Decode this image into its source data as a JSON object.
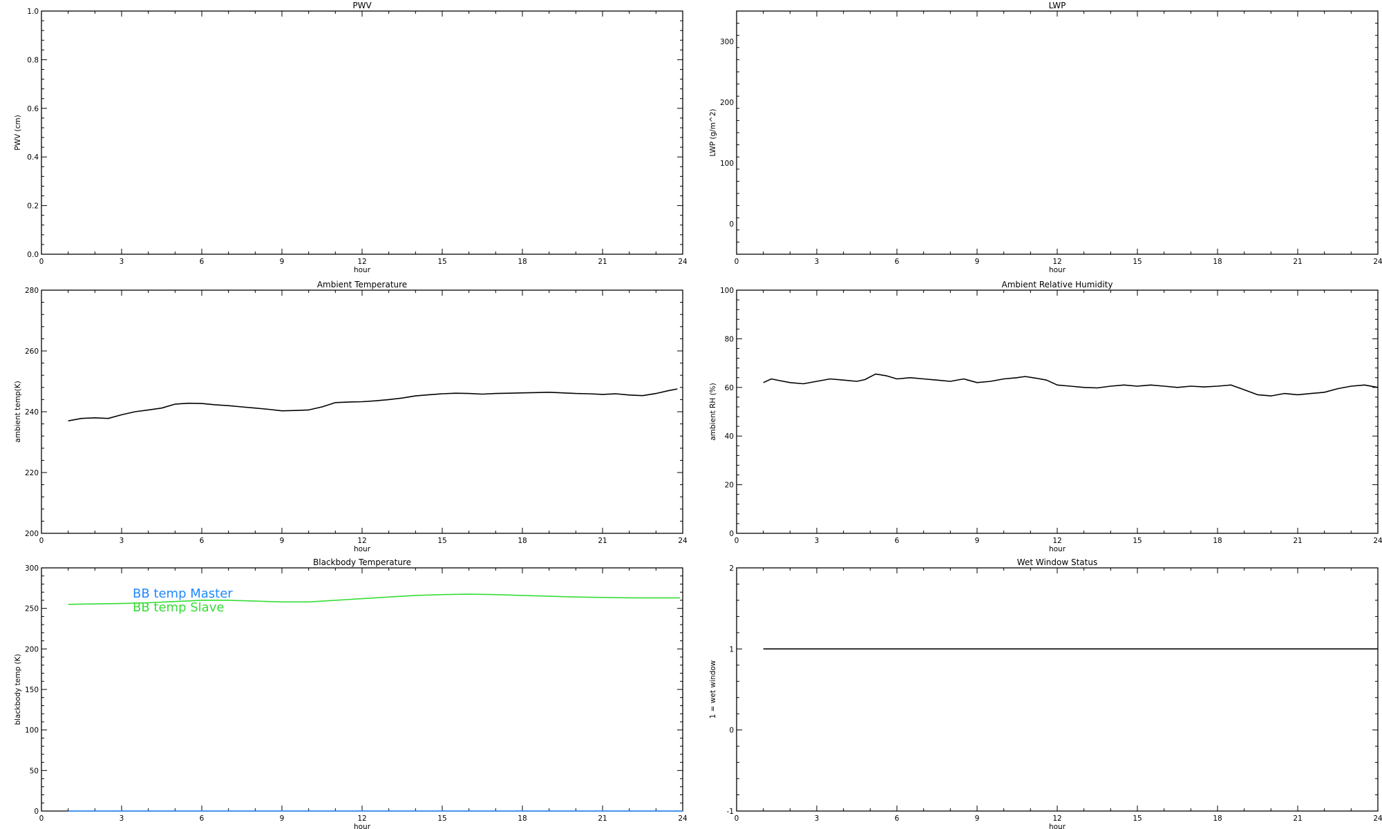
{
  "chart_data": [
    {
      "type": "line",
      "title": "PWV",
      "xlabel": "hour",
      "ylabel": "PWV (cm)",
      "xlim": [
        0,
        24
      ],
      "ylim": [
        0,
        1
      ],
      "xticks": [
        "0",
        "3",
        "6",
        "9",
        "12",
        "15",
        "18",
        "21",
        "24"
      ],
      "yticks": [
        "0.0",
        "0.2",
        "0.4",
        "0.6",
        "0.8",
        "1.0"
      ],
      "series": []
    },
    {
      "type": "line",
      "title": "LWP",
      "xlabel": "hour",
      "ylabel": "LWP (g/m^2)",
      "xlim": [
        0,
        24
      ],
      "ylim": [
        -50,
        350
      ],
      "xticks": [
        "0",
        "3",
        "6",
        "9",
        "12",
        "15",
        "18",
        "21",
        "24"
      ],
      "yticks": [
        "0",
        "100",
        "200",
        "300"
      ],
      "series": []
    },
    {
      "type": "line",
      "title": "Ambient Temperature",
      "xlabel": "hour",
      "ylabel": "ambient temp(K)",
      "xlim": [
        0,
        24
      ],
      "ylim": [
        200,
        280
      ],
      "xticks": [
        "0",
        "3",
        "6",
        "9",
        "12",
        "15",
        "18",
        "21",
        "24"
      ],
      "yticks": [
        "200",
        "220",
        "240",
        "260",
        "280"
      ],
      "series": [
        {
          "color": "#000000",
          "x": [
            1.0,
            1.5,
            2.0,
            2.5,
            3.0,
            3.5,
            4.0,
            4.5,
            5.0,
            5.5,
            6.0,
            6.5,
            7.0,
            7.5,
            8.0,
            8.5,
            9.0,
            9.5,
            10.0,
            10.5,
            11.0,
            11.5,
            12.0,
            12.5,
            13.0,
            13.5,
            14.0,
            14.5,
            15.0,
            15.5,
            16.0,
            16.5,
            17.0,
            17.5,
            18.0,
            18.5,
            19.0,
            19.5,
            20.0,
            20.5,
            21.0,
            21.5,
            22.0,
            22.5,
            23.0,
            23.5,
            23.8
          ],
          "values": [
            237.0,
            237.8,
            238.0,
            237.8,
            239.0,
            240.0,
            240.6,
            241.2,
            242.5,
            242.8,
            242.7,
            242.3,
            242.0,
            241.6,
            241.2,
            240.8,
            240.3,
            240.4,
            240.6,
            241.6,
            243.0,
            243.2,
            243.3,
            243.6,
            244.0,
            244.5,
            245.2,
            245.6,
            245.9,
            246.1,
            246.0,
            245.8,
            246.0,
            246.1,
            246.2,
            246.3,
            246.4,
            246.2,
            246.0,
            245.9,
            245.7,
            245.9,
            245.5,
            245.3,
            246.0,
            247.0,
            247.5
          ]
        }
      ]
    },
    {
      "type": "line",
      "title": "Ambient Relative Humidity",
      "xlabel": "hour",
      "ylabel": "ambient RH (%)",
      "xlim": [
        0,
        24
      ],
      "ylim": [
        0,
        100
      ],
      "xticks": [
        "0",
        "3",
        "6",
        "9",
        "12",
        "15",
        "18",
        "21",
        "24"
      ],
      "yticks": [
        "0",
        "20",
        "40",
        "60",
        "80",
        "100"
      ],
      "series": [
        {
          "color": "#000000",
          "x": [
            1.0,
            1.3,
            1.6,
            2.0,
            2.5,
            3.0,
            3.5,
            4.0,
            4.5,
            4.8,
            5.2,
            5.6,
            6.0,
            6.5,
            7.0,
            7.5,
            8.0,
            8.5,
            9.0,
            9.5,
            10.0,
            10.5,
            10.8,
            11.2,
            11.6,
            12.0,
            12.5,
            13.0,
            13.5,
            14.0,
            14.5,
            15.0,
            15.5,
            16.0,
            16.5,
            17.0,
            17.5,
            18.0,
            18.5,
            19.0,
            19.5,
            20.0,
            20.5,
            21.0,
            21.5,
            22.0,
            22.5,
            23.0,
            23.5,
            24.0
          ],
          "values": [
            62.0,
            63.5,
            62.8,
            62.0,
            61.5,
            62.5,
            63.5,
            63.0,
            62.5,
            63.2,
            65.5,
            64.8,
            63.5,
            64.0,
            63.5,
            63.0,
            62.5,
            63.5,
            62.0,
            62.5,
            63.5,
            64.0,
            64.5,
            63.8,
            63.0,
            61.0,
            60.5,
            60.0,
            59.8,
            60.5,
            61.0,
            60.5,
            61.0,
            60.5,
            60.0,
            60.5,
            60.2,
            60.5,
            61.0,
            59.0,
            57.0,
            56.5,
            57.5,
            57.0,
            57.5,
            58.0,
            59.5,
            60.5,
            61.0,
            60.0
          ]
        }
      ]
    },
    {
      "type": "line",
      "title": "Blackbody Temperature",
      "xlabel": "hour",
      "ylabel": "blackbody temp (K)",
      "xlim": [
        0,
        24
      ],
      "ylim": [
        0,
        300
      ],
      "xticks": [
        "0",
        "3",
        "6",
        "9",
        "12",
        "15",
        "18",
        "21",
        "24"
      ],
      "yticks": [
        "0",
        "50",
        "100",
        "150",
        "200",
        "250",
        "300"
      ],
      "legend": "top-left",
      "series": [
        {
          "name": "BB temp Master",
          "color": "#1e88ff",
          "x": [
            1.0,
            24.0
          ],
          "values": [
            0.0,
            0.0
          ]
        },
        {
          "name": "BB temp Slave",
          "color": "#33dd33",
          "x": [
            1.0,
            2.0,
            3.0,
            4.0,
            5.0,
            6.0,
            7.0,
            8.0,
            9.0,
            10.0,
            11.0,
            12.0,
            13.0,
            14.0,
            15.0,
            16.0,
            17.0,
            18.0,
            19.0,
            20.0,
            21.0,
            22.0,
            23.0,
            23.9
          ],
          "values": [
            255.0,
            255.5,
            256.0,
            257.0,
            258.5,
            260.0,
            260.0,
            259.0,
            258.0,
            258.0,
            260.0,
            262.0,
            264.0,
            266.0,
            267.0,
            267.5,
            267.0,
            266.0,
            265.0,
            264.0,
            263.5,
            263.0,
            263.0,
            263.0
          ]
        }
      ]
    },
    {
      "type": "line",
      "title": "Wet Window Status",
      "xlabel": "hour",
      "ylabel": "1 = wet window",
      "xlim": [
        0,
        24
      ],
      "ylim": [
        -1,
        2
      ],
      "xticks": [
        "0",
        "3",
        "6",
        "9",
        "12",
        "15",
        "18",
        "21",
        "24"
      ],
      "yticks": [
        "-1",
        "0",
        "1",
        "2"
      ],
      "series": [
        {
          "color": "#000000",
          "x": [
            1.0,
            24.0
          ],
          "values": [
            1.0,
            1.0
          ]
        }
      ]
    }
  ]
}
